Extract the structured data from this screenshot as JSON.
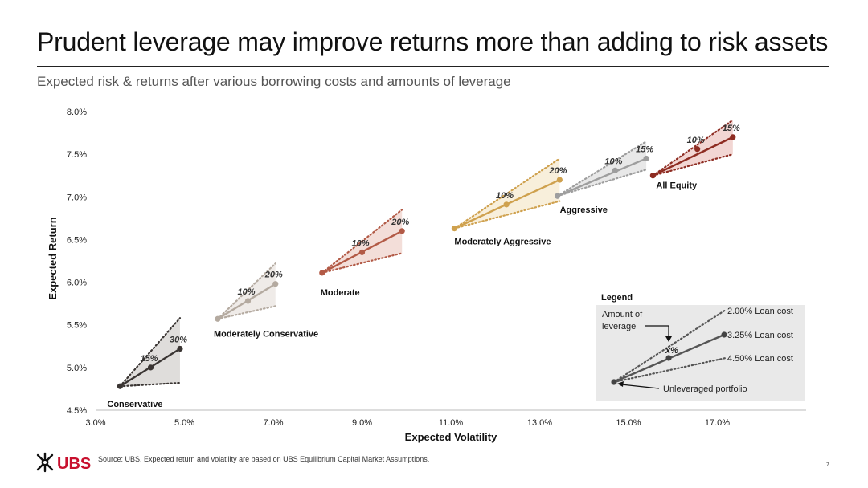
{
  "title": "Prudent leverage may improve returns more than adding to risk assets",
  "subtitle": "Expected risk & returns after various borrowing costs and amounts of leverage",
  "source": "Source: UBS. Expected return and volatility are based on UBS Equilibrium Capital Market Assumptions.",
  "page_number": "7",
  "logo_text": "UBS",
  "chart_data": {
    "type": "scatter",
    "xlabel": "Expected Volatility",
    "ylabel": "Expected Return",
    "xlim": [
      0.03,
      0.19
    ],
    "ylim": [
      0.045,
      0.08
    ],
    "x_ticks": [
      0.03,
      0.05,
      0.07,
      0.09,
      0.11,
      0.13,
      0.15,
      0.17
    ],
    "x_tick_labels": [
      "3.0%",
      "5.0%",
      "7.0%",
      "9.0%",
      "11.0%",
      "13.0%",
      "15.0%",
      "17.0%"
    ],
    "y_ticks": [
      0.045,
      0.05,
      0.055,
      0.06,
      0.065,
      0.07,
      0.075,
      0.08
    ],
    "y_tick_labels": [
      "4.5%",
      "5.0%",
      "5.5%",
      "6.0%",
      "6.5%",
      "7.0%",
      "7.5%",
      "8.0%"
    ],
    "grid": false,
    "series": [
      {
        "name": "Conservative",
        "color": "#3a3533",
        "fill": "#d9d7d5",
        "base": [
          0.0355,
          0.0478
        ],
        "leverage": [
          {
            "label": "15%",
            "x": 0.0424,
            "y": 0.05
          },
          {
            "label": "30%",
            "x": 0.049,
            "y": 0.0522
          }
        ],
        "high_end": [
          0.049,
          0.0558
        ],
        "low_end": [
          0.049,
          0.0482
        ]
      },
      {
        "name": "Moderately Conservative",
        "color": "#b4aaa0",
        "fill": "#ece8e4",
        "base": [
          0.0575,
          0.0557
        ],
        "leverage": [
          {
            "label": "10%",
            "x": 0.0643,
            "y": 0.0578
          },
          {
            "label": "20%",
            "x": 0.0705,
            "y": 0.0598
          }
        ],
        "high_end": [
          0.0705,
          0.0622
        ],
        "low_end": [
          0.0705,
          0.0572
        ]
      },
      {
        "name": "Moderate",
        "color": "#b25a46",
        "fill": "#f1d8d2",
        "base": [
          0.081,
          0.0611
        ],
        "leverage": [
          {
            "label": "10%",
            "x": 0.09,
            "y": 0.0635
          },
          {
            "label": "20%",
            "x": 0.099,
            "y": 0.066
          }
        ],
        "high_end": [
          0.099,
          0.0685
        ],
        "low_end": [
          0.099,
          0.0634
        ]
      },
      {
        "name": "Moderately Aggressive",
        "color": "#cfa14e",
        "fill": "#f7ecd5",
        "base": [
          0.1108,
          0.0663
        ],
        "leverage": [
          {
            "label": "10%",
            "x": 0.1225,
            "y": 0.0691
          },
          {
            "label": "20%",
            "x": 0.1345,
            "y": 0.072
          }
        ],
        "high_end": [
          0.1345,
          0.0745
        ],
        "low_end": [
          0.1345,
          0.0695
        ]
      },
      {
        "name": "Aggressive",
        "color": "#9e9e9e",
        "fill": "#e4e4e4",
        "base": [
          0.134,
          0.0701
        ],
        "leverage": [
          {
            "label": "10%",
            "x": 0.147,
            "y": 0.0731
          },
          {
            "label": "15%",
            "x": 0.154,
            "y": 0.0745
          }
        ],
        "high_end": [
          0.154,
          0.0765
        ],
        "low_end": [
          0.154,
          0.0732
        ]
      },
      {
        "name": "All Equity",
        "color": "#8e2c22",
        "fill": "#f0cfcb",
        "base": [
          0.1555,
          0.0725
        ],
        "leverage": [
          {
            "label": "10%",
            "x": 0.1655,
            "y": 0.0756
          },
          {
            "label": "15%",
            "x": 0.1735,
            "y": 0.077
          }
        ],
        "high_end": [
          0.1735,
          0.079
        ],
        "low_end": [
          0.1735,
          0.075
        ]
      }
    ],
    "legend": {
      "title": "Legend",
      "amount_label": "Amount of\nleverage",
      "x_label": "x%",
      "high_label": "2.00% Loan cost",
      "mid_label": "3.25% Loan cost",
      "low_label": "4.50% Loan cost",
      "base_label": "Unleveraged portfolio",
      "placement": "bottom-right"
    }
  }
}
